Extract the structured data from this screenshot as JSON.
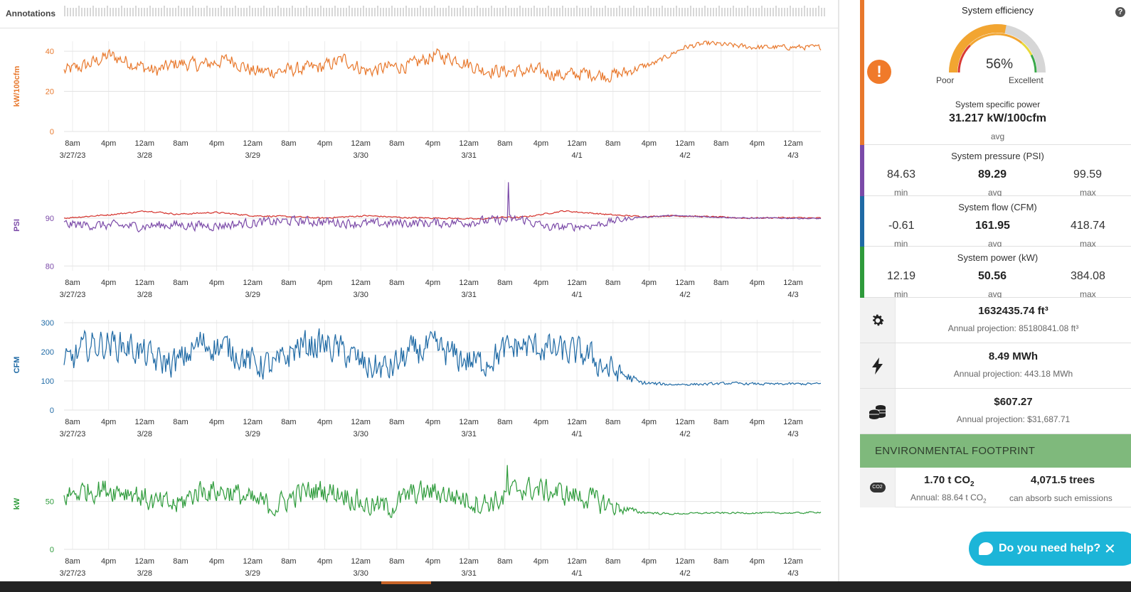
{
  "header": {
    "annotations_label": "Annotations"
  },
  "chart_data": [
    {
      "type": "line",
      "name": "specific-power",
      "ylabel": "kW/100cfm",
      "ylim": [
        0,
        45
      ],
      "yticks": [
        0,
        20,
        40
      ],
      "color": "#e8782c",
      "baseline": [
        [
          0,
          30
        ],
        [
          3,
          33
        ],
        [
          6,
          38
        ],
        [
          9,
          34
        ],
        [
          12,
          30
        ],
        [
          15,
          34
        ],
        [
          18,
          33
        ],
        [
          22,
          36
        ],
        [
          25,
          30
        ],
        [
          28,
          30
        ],
        [
          31,
          31
        ],
        [
          34,
          32
        ],
        [
          37,
          36
        ],
        [
          40,
          30
        ],
        [
          43,
          32
        ],
        [
          46,
          33
        ],
        [
          49,
          38
        ],
        [
          52,
          36
        ],
        [
          55,
          31
        ],
        [
          58,
          30
        ],
        [
          60,
          30
        ],
        [
          63,
          30
        ],
        [
          66,
          28
        ],
        [
          69,
          29
        ],
        [
          72,
          28
        ],
        [
          74,
          29
        ],
        [
          76,
          32
        ],
        [
          78,
          34
        ],
        [
          80,
          38
        ],
        [
          82,
          42
        ],
        [
          85,
          44
        ],
        [
          88,
          43
        ],
        [
          91,
          42
        ],
        [
          94,
          42
        ],
        [
          97,
          42
        ],
        [
          100,
          42
        ]
      ],
      "noise": [
        [
          0,
          8
        ],
        [
          74,
          8
        ],
        [
          76,
          4
        ],
        [
          79,
          3
        ],
        [
          100,
          3
        ]
      ]
    },
    {
      "type": "line",
      "name": "pressure",
      "ylabel": "PSI",
      "ylim": [
        79,
        98
      ],
      "yticks": [
        80,
        90
      ],
      "series": [
        {
          "name": "psi-red",
          "color": "#d4302a",
          "baseline": [
            [
              0,
              90
            ],
            [
              6,
              90.7
            ],
            [
              11,
              91.5
            ],
            [
              15,
              90.8
            ],
            [
              20,
              91.2
            ],
            [
              25,
              90.5
            ],
            [
              30,
              90.3
            ],
            [
              34,
              90
            ],
            [
              40,
              90.5
            ],
            [
              45,
              90.1
            ],
            [
              50,
              90
            ],
            [
              55,
              89.8
            ],
            [
              58,
              90.2
            ],
            [
              60,
              90.1
            ],
            [
              62,
              90.5
            ],
            [
              64,
              91
            ],
            [
              66,
              91.5
            ],
            [
              70,
              91
            ],
            [
              73,
              90.6
            ],
            [
              77,
              90.3
            ],
            [
              80,
              90.5
            ],
            [
              85,
              90.3
            ],
            [
              90,
              90
            ],
            [
              95,
              90.1
            ],
            [
              100,
              90
            ]
          ],
          "noise": [
            [
              0,
              0.35
            ],
            [
              100,
              0.35
            ]
          ]
        },
        {
          "name": "psi-purple",
          "color": "#7b4aa8",
          "baseline": [
            [
              0,
              88.7
            ],
            [
              5,
              88.5
            ],
            [
              10,
              88.3
            ],
            [
              14,
              88.6
            ],
            [
              20,
              88.4
            ],
            [
              25,
              89
            ],
            [
              30,
              89.4
            ],
            [
              35,
              89.2
            ],
            [
              40,
              88.8
            ],
            [
              45,
              89
            ],
            [
              50,
              89
            ],
            [
              55,
              89.3
            ],
            [
              58,
              89.6
            ],
            [
              60,
              89.7
            ],
            [
              61,
              89.6
            ],
            [
              62,
              89
            ],
            [
              64,
              88
            ],
            [
              67,
              88.2
            ],
            [
              70,
              88.5
            ],
            [
              73,
              89.5
            ],
            [
              76,
              90.2
            ],
            [
              80,
              90.5
            ],
            [
              85,
              90.3
            ],
            [
              90,
              90
            ],
            [
              95,
              90
            ],
            [
              100,
              89.9
            ]
          ],
          "noise": [
            [
              0,
              2.3
            ],
            [
              62,
              2.3
            ],
            [
              64,
              2.0
            ],
            [
              73,
              1.8
            ],
            [
              76,
              0.3
            ],
            [
              100,
              0.3
            ]
          ],
          "spike": {
            "at": 58.7,
            "value": 97.5
          }
        }
      ]
    },
    {
      "type": "line",
      "name": "flow",
      "ylabel": "CFM",
      "ylim": [
        0,
        310
      ],
      "yticks": [
        0,
        100,
        200,
        300
      ],
      "color": "#1f6aa5",
      "baseline": [
        [
          0,
          150
        ],
        [
          3,
          220
        ],
        [
          6,
          230
        ],
        [
          9,
          215
        ],
        [
          12,
          170
        ],
        [
          15,
          160
        ],
        [
          18,
          230
        ],
        [
          22,
          210
        ],
        [
          25,
          160
        ],
        [
          28,
          150
        ],
        [
          31,
          220
        ],
        [
          34,
          225
        ],
        [
          37,
          200
        ],
        [
          40,
          150
        ],
        [
          43,
          140
        ],
        [
          46,
          200
        ],
        [
          49,
          215
        ],
        [
          52,
          180
        ],
        [
          55,
          160
        ],
        [
          58,
          200
        ],
        [
          60,
          220
        ],
        [
          63,
          215
        ],
        [
          66,
          200
        ],
        [
          69,
          190
        ],
        [
          72,
          140
        ],
        [
          74,
          120
        ],
        [
          76,
          95
        ],
        [
          78,
          90
        ],
        [
          80,
          88
        ],
        [
          85,
          89
        ],
        [
          88,
          92
        ],
        [
          91,
          90
        ],
        [
          94,
          89
        ],
        [
          97,
          90
        ],
        [
          100,
          90
        ]
      ],
      "noise": [
        [
          0,
          120
        ],
        [
          72,
          120
        ],
        [
          74,
          60
        ],
        [
          76,
          20
        ],
        [
          80,
          10
        ],
        [
          100,
          10
        ]
      ]
    },
    {
      "type": "line",
      "name": "power",
      "ylabel": "kW",
      "ylim": [
        0,
        95
      ],
      "yticks": [
        0,
        50
      ],
      "color": "#2e9b3b",
      "baseline": [
        [
          0,
          55
        ],
        [
          3,
          62
        ],
        [
          6,
          63
        ],
        [
          9,
          60
        ],
        [
          12,
          48
        ],
        [
          15,
          46
        ],
        [
          18,
          62
        ],
        [
          22,
          60
        ],
        [
          25,
          50
        ],
        [
          28,
          45
        ],
        [
          31,
          58
        ],
        [
          34,
          62
        ],
        [
          37,
          58
        ],
        [
          40,
          46
        ],
        [
          43,
          44
        ],
        [
          46,
          58
        ],
        [
          49,
          60
        ],
        [
          52,
          55
        ],
        [
          55,
          48
        ],
        [
          58,
          52
        ],
        [
          60,
          64
        ],
        [
          63,
          62
        ],
        [
          66,
          58
        ],
        [
          69,
          54
        ],
        [
          72,
          46
        ],
        [
          74,
          42
        ],
        [
          76,
          39
        ],
        [
          78,
          38
        ],
        [
          80,
          37
        ],
        [
          85,
          38
        ],
        [
          88,
          38
        ],
        [
          91,
          38
        ],
        [
          94,
          38
        ],
        [
          97,
          38
        ],
        [
          100,
          39
        ]
      ],
      "noise": [
        [
          0,
          28
        ],
        [
          72,
          28
        ],
        [
          74,
          12
        ],
        [
          76,
          4
        ],
        [
          80,
          2
        ],
        [
          100,
          2
        ]
      ],
      "spike": {
        "at": 58.6,
        "value": 88
      }
    }
  ],
  "xaxis": {
    "labels": [
      {
        "t": "8am",
        "d": "3/27/23"
      },
      {
        "t": "4pm",
        "d": ""
      },
      {
        "t": "12am",
        "d": "3/28"
      },
      {
        "t": "8am",
        "d": ""
      },
      {
        "t": "4pm",
        "d": ""
      },
      {
        "t": "12am",
        "d": "3/29"
      },
      {
        "t": "8am",
        "d": ""
      },
      {
        "t": "4pm",
        "d": ""
      },
      {
        "t": "12am",
        "d": "3/30"
      },
      {
        "t": "8am",
        "d": ""
      },
      {
        "t": "4pm",
        "d": ""
      },
      {
        "t": "12am",
        "d": "3/31"
      },
      {
        "t": "8am",
        "d": ""
      },
      {
        "t": "4pm",
        "d": ""
      },
      {
        "t": "12am",
        "d": "4/1"
      },
      {
        "t": "8am",
        "d": ""
      },
      {
        "t": "4pm",
        "d": ""
      },
      {
        "t": "12am",
        "d": "4/2"
      },
      {
        "t": "8am",
        "d": ""
      },
      {
        "t": "4pm",
        "d": ""
      },
      {
        "t": "12am",
        "d": "4/3"
      }
    ]
  },
  "panel": {
    "efficiency": {
      "title": "System efficiency",
      "value": "56%",
      "percent": 56,
      "low_label": "Poor",
      "high_label": "Excellent",
      "alert_icon": "exclamation-icon",
      "help_icon": "question-icon"
    },
    "specific_power": {
      "title": "System specific power",
      "value": "31.217 kW/100cfm",
      "label": "avg"
    },
    "pressure": {
      "title": "System pressure (PSI)",
      "min": "84.63",
      "avg": "89.29",
      "max": "99.59",
      "min_label": "min",
      "avg_label": "avg",
      "max_label": "max",
      "color": "#7b4aa8"
    },
    "flow": {
      "title": "System flow (CFM)",
      "min": "-0.61",
      "avg": "161.95",
      "max": "418.74",
      "min_label": "min",
      "avg_label": "avg",
      "max_label": "max",
      "color": "#1f6aa5"
    },
    "power": {
      "title": "System power (kW)",
      "min": "12.19",
      "avg": "50.56",
      "max": "384.08",
      "min_label": "min",
      "avg_label": "avg",
      "max_label": "max",
      "color": "#2e9b3b"
    },
    "volume": {
      "icon": "gear-icon",
      "value": "1632435.74 ft³",
      "projection": "Annual projection: 85180841.08 ft³"
    },
    "energy": {
      "icon": "lightning-icon",
      "value": "8.49 MWh",
      "projection": "Annual projection: 443.18 MWh"
    },
    "cost": {
      "icon": "coins-icon",
      "value": "$607.27",
      "projection": "Annual projection: $31,687.71"
    },
    "environment": {
      "header": "ENVIRONMENTAL FOOTPRINT",
      "icon": "co2-cloud-icon",
      "co2_value": "1.70 t CO",
      "co2_sub": "2",
      "co2_annual": "Annual: 88.64 t CO",
      "co2_annual_sub": "2",
      "trees_value": "4,071.5 trees",
      "trees_label": "can absorb such emissions",
      "icon_label": "CO2"
    }
  },
  "help": {
    "label": "Do you need help?",
    "icon": "chat-bubble-icon",
    "close_icon": "close-icon"
  },
  "colors": {
    "orange": "#e8782c",
    "purple": "#7b4aa8",
    "blue": "#1f6aa5",
    "green": "#2e9b3b",
    "env": "#7fb97c"
  }
}
